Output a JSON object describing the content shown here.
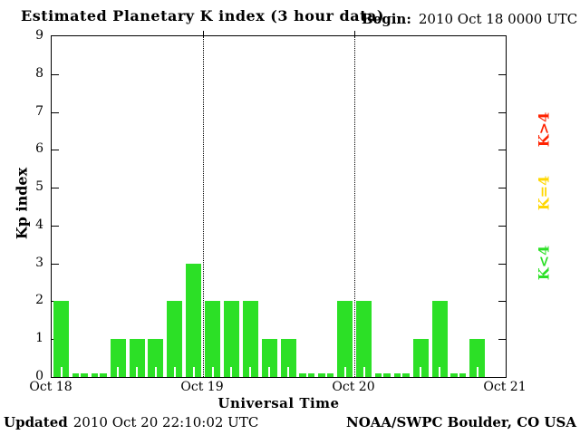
{
  "header": {
    "title": "Estimated Planetary K index (3 hour data)",
    "begin_label": "Begin:",
    "begin_value": "2010 Oct 18 0000 UTC"
  },
  "footer": {
    "updated_label": "Updated",
    "updated_value": "2010 Oct 20 22:10:02 UTC",
    "credit": "NOAA/SWPC Boulder, CO USA"
  },
  "legend": {
    "items": [
      {
        "label": "K>4",
        "color": "#ff2200"
      },
      {
        "label": "K=4",
        "color": "#ffd700"
      },
      {
        "label": "K<4",
        "color": "#2ce026"
      }
    ]
  },
  "chart_data": {
    "type": "bar",
    "title": "Estimated Planetary K index (3 hour data)",
    "begin": "2010 Oct 18 0000 UTC",
    "xlabel": "Universal Time",
    "ylabel": "Kp index",
    "ylim": [
      0,
      9
    ],
    "yticks": [
      0,
      1,
      2,
      3,
      4,
      5,
      6,
      7,
      8,
      9
    ],
    "interval_hours": 3,
    "x_tick_labels": [
      "Oct 18",
      "Oct 19",
      "Oct 20",
      "Oct 21"
    ],
    "days": [
      {
        "date": "Oct 18",
        "kp": [
          2,
          0,
          0,
          1,
          1,
          1,
          2,
          3
        ]
      },
      {
        "date": "Oct 19",
        "kp": [
          2,
          2,
          2,
          1,
          1,
          0,
          0,
          2
        ]
      },
      {
        "date": "Oct 20",
        "kp": [
          2,
          0,
          0,
          1,
          2,
          0,
          1,
          null
        ]
      }
    ],
    "bar_color": "#2ce026",
    "grid": "dotted vertical lines at day boundaries",
    "legend_position": "right, rotated 90deg"
  }
}
